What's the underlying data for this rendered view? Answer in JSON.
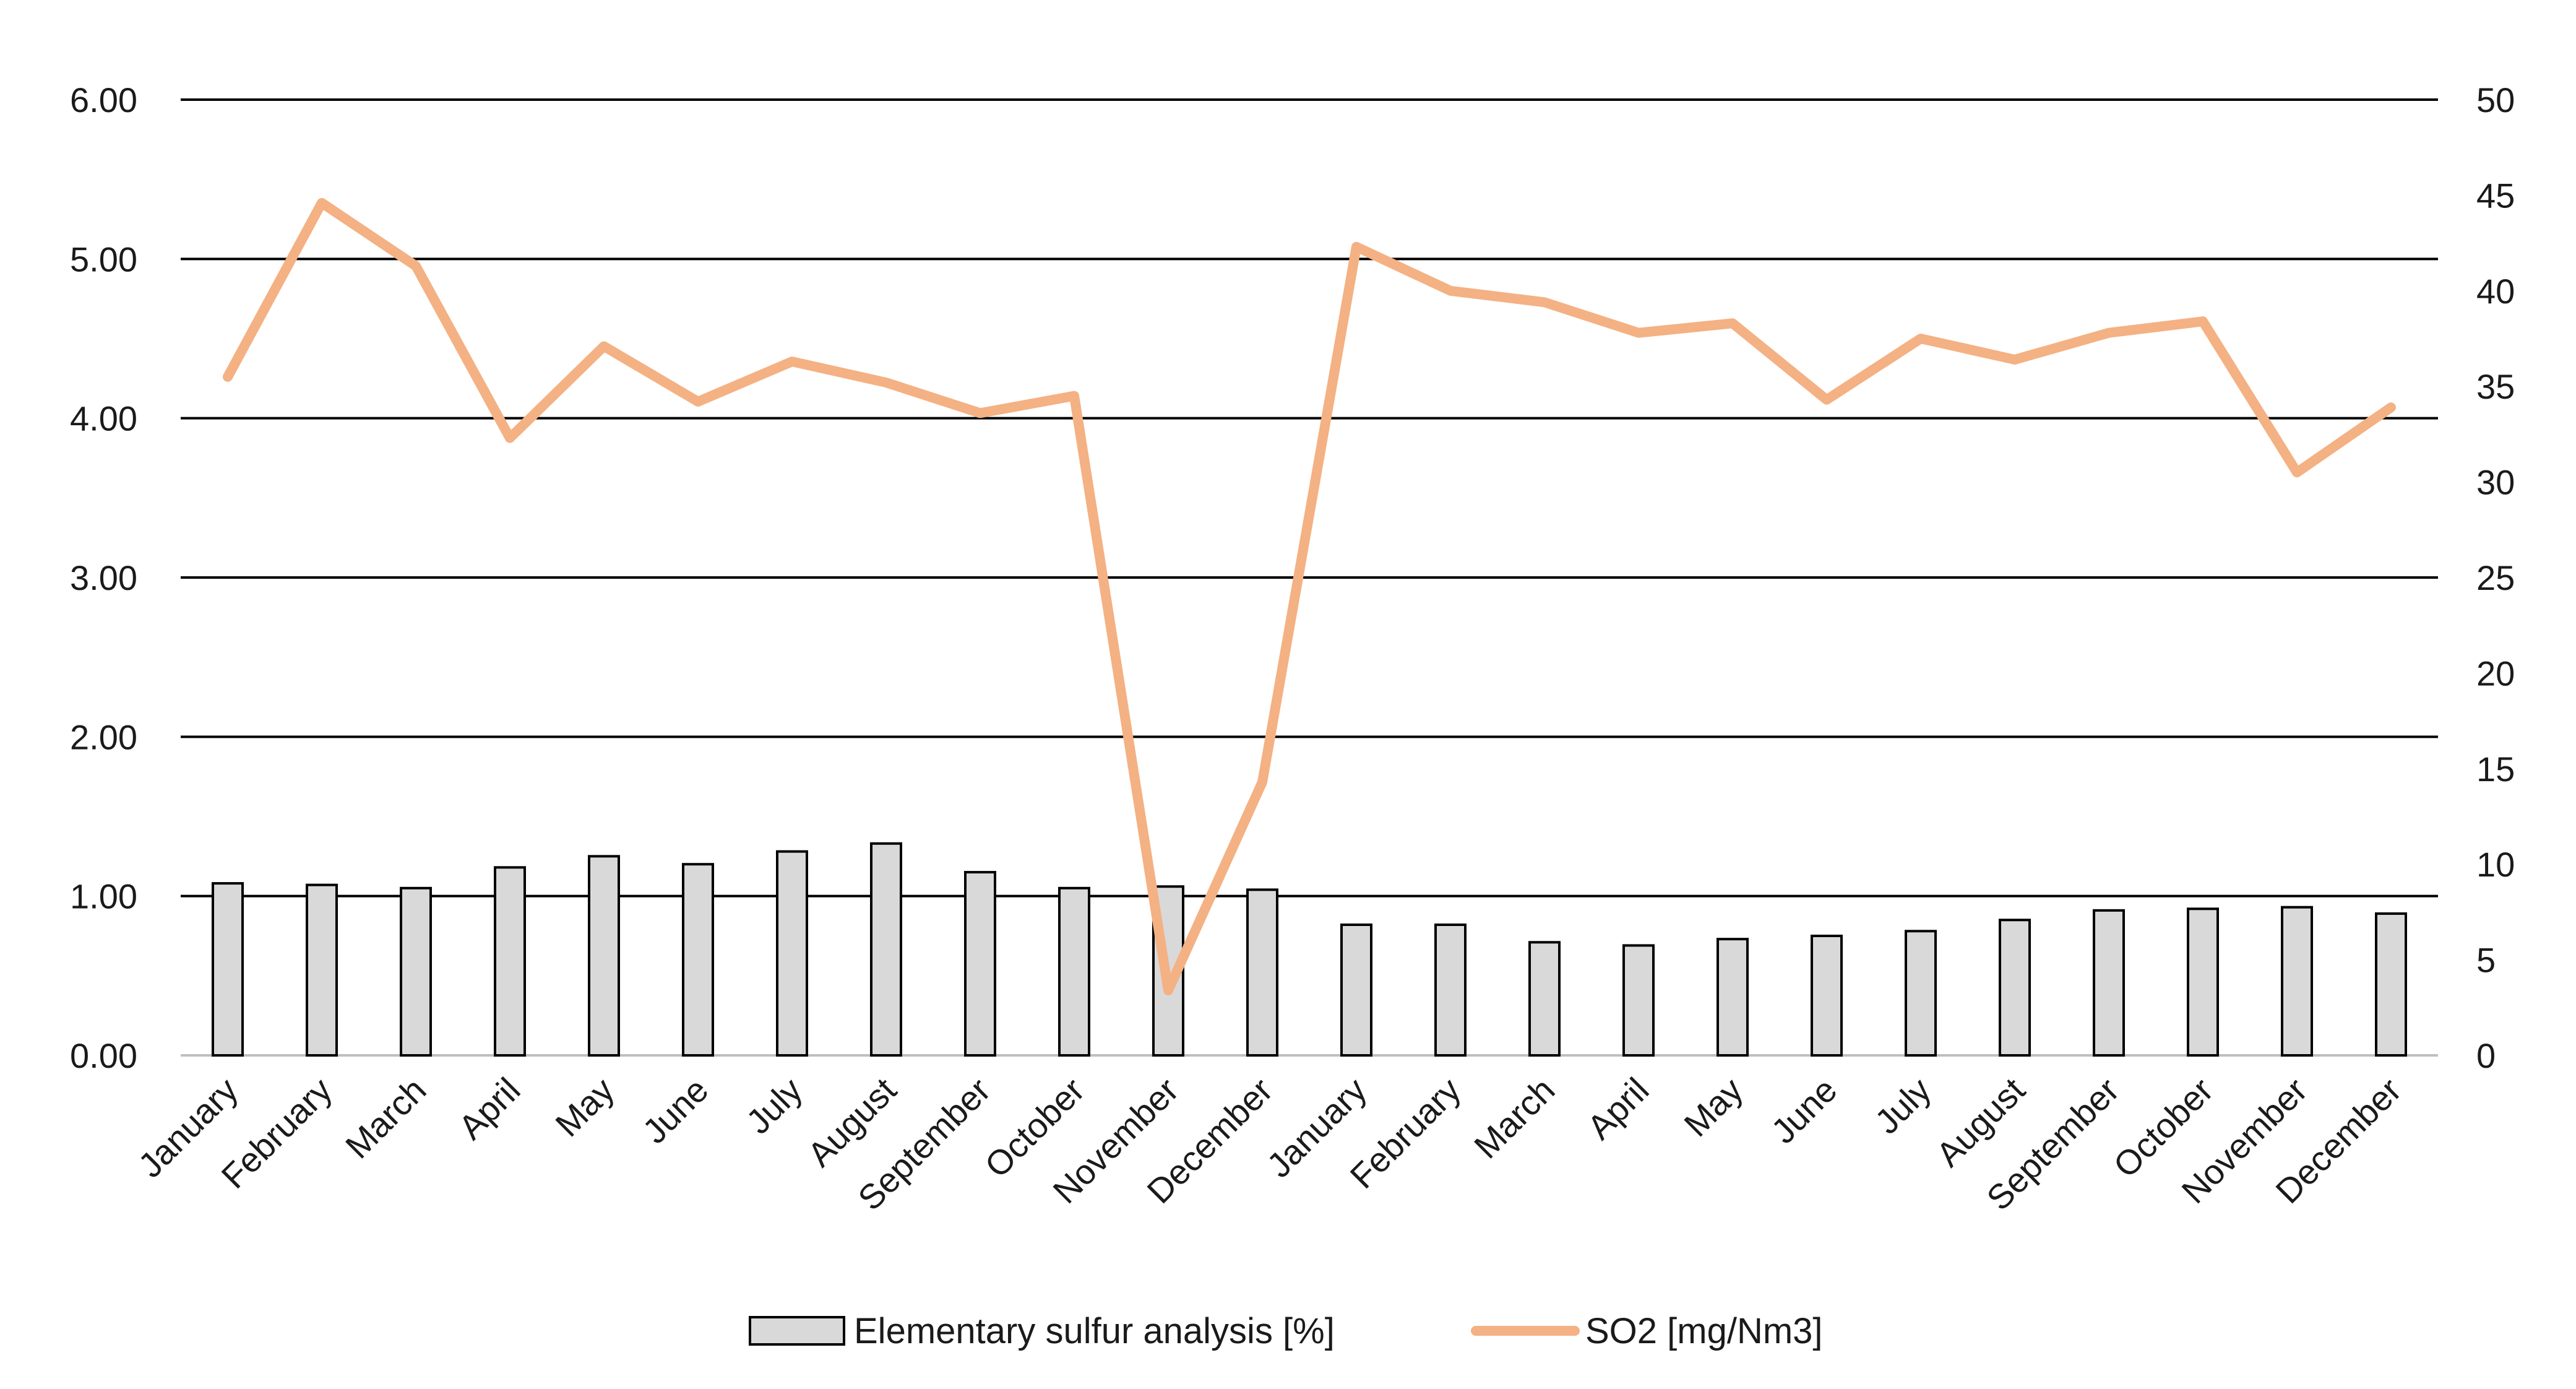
{
  "chart_data": {
    "type": "bar+line",
    "categories": [
      "January",
      "February",
      "March",
      "April",
      "May",
      "June",
      "July",
      "August",
      "September",
      "October",
      "November",
      "December",
      "January",
      "February",
      "March",
      "April",
      "May",
      "June",
      "July",
      "August",
      "September",
      "October",
      "November",
      "December"
    ],
    "series": [
      {
        "name": "Elementary sulfur analysis [%]",
        "type": "bar",
        "axis": "left",
        "color": "#d9d9d9",
        "stroke": "#000000",
        "values": [
          1.08,
          1.07,
          1.05,
          1.18,
          1.25,
          1.2,
          1.28,
          1.33,
          1.15,
          1.05,
          1.06,
          1.04,
          0.82,
          0.82,
          0.71,
          0.69,
          0.73,
          0.75,
          0.78,
          0.85,
          0.91,
          0.92,
          0.93,
          0.89
        ]
      },
      {
        "name": "SO2 [mg/Nm3]",
        "type": "line",
        "axis": "right",
        "color": "#f4b183",
        "values": [
          35.5,
          44.6,
          41.3,
          32.3,
          37.1,
          34.2,
          36.3,
          35.2,
          33.6,
          34.5,
          3.4,
          14.3,
          42.3,
          40.0,
          39.4,
          37.8,
          38.3,
          34.3,
          37.5,
          36.4,
          37.8,
          38.4,
          30.5,
          33.9
        ]
      }
    ],
    "y_left": {
      "min": 0,
      "max": 6,
      "ticks": [
        "0.00",
        "1.00",
        "2.00",
        "3.00",
        "4.00",
        "5.00",
        "6.00"
      ]
    },
    "y_right": {
      "min": 0,
      "max": 50,
      "ticks": [
        "0",
        "5",
        "10",
        "15",
        "20",
        "25",
        "30",
        "35",
        "40",
        "45",
        "50"
      ]
    },
    "grid": true,
    "legend": {
      "placement": "bottom",
      "items": [
        "Elementary sulfur analysis [%]",
        "SO2 [mg/Nm3]"
      ]
    },
    "title": "",
    "xlabel": "",
    "ylabel": "",
    "ylabel_right": ""
  }
}
